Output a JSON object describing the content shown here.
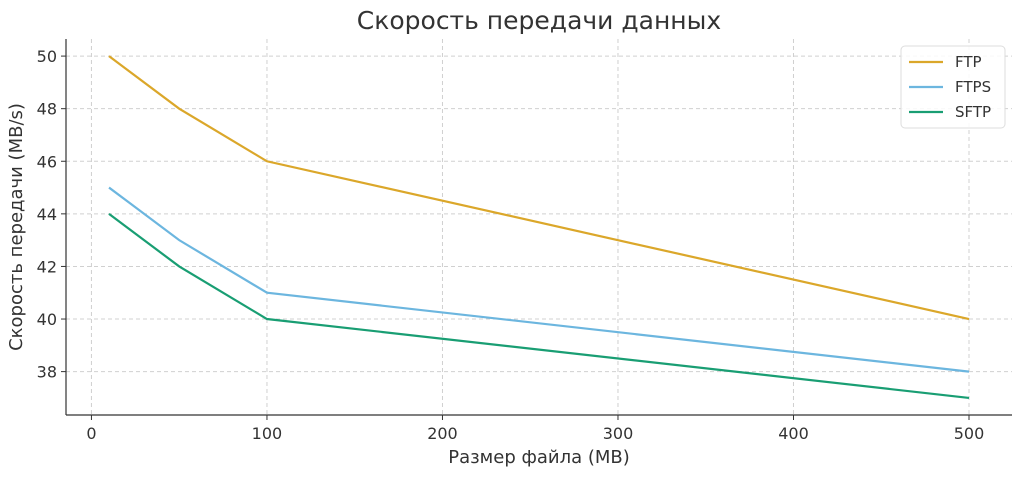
{
  "chart_data": {
    "type": "line",
    "title": "Скорость передачи данных",
    "xlabel": "Размер файла (MB)",
    "ylabel": "Скорость передачи (MB/s)",
    "x": [
      10,
      50,
      100,
      500
    ],
    "series": [
      {
        "name": "FTP",
        "values": [
          50,
          48,
          46,
          40
        ],
        "color": "#DBA72A"
      },
      {
        "name": "FTPS",
        "values": [
          45,
          43,
          41,
          38
        ],
        "color": "#6CB6DF"
      },
      {
        "name": "SFTP",
        "values": [
          44,
          42,
          40,
          37
        ],
        "color": "#199E73"
      }
    ],
    "xlim": [
      -14.5,
      524.5
    ],
    "ylim": [
      36.35,
      50.65
    ],
    "xticks": [
      0,
      100,
      200,
      300,
      400,
      500
    ],
    "yticks": [
      38,
      40,
      42,
      44,
      46,
      48,
      50
    ],
    "grid": true,
    "legend": "top-right"
  }
}
